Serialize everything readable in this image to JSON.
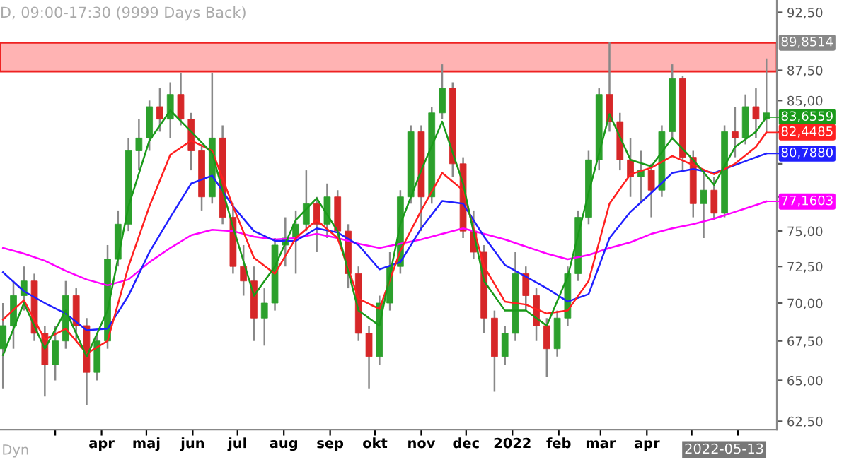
{
  "chart_data": {
    "type": "candlestick",
    "title": "D, 09:00-17:30 (9999 Days Back)",
    "x": [
      "2021-01-25",
      "2021-02-01",
      "2021-02-08",
      "2021-02-15",
      "2021-02-22",
      "2021-03-01",
      "2021-03-08",
      "2021-03-15",
      "2021-03-22",
      "2021-03-29",
      "2021-04-05",
      "2021-04-12",
      "2021-04-19",
      "2021-04-26",
      "2021-05-03",
      "2021-05-10",
      "2021-05-17",
      "2021-05-24",
      "2021-05-31",
      "2021-06-07",
      "2021-06-14",
      "2021-06-21",
      "2021-06-28",
      "2021-07-05",
      "2021-07-12",
      "2021-07-19",
      "2021-07-26",
      "2021-08-02",
      "2021-08-09",
      "2021-08-16",
      "2021-08-23",
      "2021-08-30",
      "2021-09-06",
      "2021-09-13",
      "2021-09-20",
      "2021-09-27",
      "2021-10-04",
      "2021-10-11",
      "2021-10-18",
      "2021-10-25",
      "2021-11-01",
      "2021-11-08",
      "2021-11-15",
      "2021-11-22",
      "2021-11-29",
      "2021-12-06",
      "2021-12-13",
      "2021-12-20",
      "2021-12-27",
      "2022-01-03",
      "2022-01-10",
      "2022-01-17",
      "2022-01-24",
      "2022-01-31",
      "2022-02-07",
      "2022-02-14",
      "2022-02-21",
      "2022-02-28",
      "2022-03-07",
      "2022-03-14",
      "2022-03-21",
      "2022-03-28",
      "2022-04-04",
      "2022-04-11",
      "2022-04-18",
      "2022-04-25",
      "2022-05-02",
      "2022-05-09",
      "2022-05-16",
      "2022-05-23",
      "2022-05-30",
      "2022-06-06",
      "2022-06-13",
      "2022-06-20"
    ],
    "ohlc": [
      [
        67,
        70,
        64.5,
        68.5
      ],
      [
        68.5,
        71.5,
        67,
        70.5
      ],
      [
        70.5,
        72.5,
        69.5,
        71.5
      ],
      [
        71.5,
        72,
        67.5,
        68
      ],
      [
        68,
        68.5,
        64,
        66
      ],
      [
        66,
        68.5,
        65,
        67.5
      ],
      [
        67.5,
        71.5,
        67,
        70.5
      ],
      [
        70.5,
        71,
        67.5,
        68.5
      ],
      [
        68.5,
        69,
        63.5,
        65.5
      ],
      [
        65.5,
        68,
        65,
        67.5
      ],
      [
        67.5,
        74,
        67,
        73
      ],
      [
        73,
        76.5,
        72.5,
        75.5
      ],
      [
        75.5,
        82,
        75,
        81
      ],
      [
        81,
        83.5,
        79.5,
        82
      ],
      [
        82,
        85,
        81,
        84.5
      ],
      [
        84.5,
        86,
        82.5,
        83.5
      ],
      [
        83.5,
        86.5,
        82,
        85.5
      ],
      [
        85.5,
        87.3,
        83,
        83.5
      ],
      [
        83.5,
        84,
        79.5,
        81
      ],
      [
        81,
        81.5,
        76.5,
        77.5
      ],
      [
        77.5,
        87.3,
        77,
        82
      ],
      [
        82,
        83,
        75.5,
        76
      ],
      [
        76,
        77,
        72,
        72.5
      ],
      [
        72.5,
        74,
        70.5,
        71.5
      ],
      [
        71.5,
        72.5,
        67.5,
        69
      ],
      [
        69,
        71,
        67.2,
        70
      ],
      [
        70,
        74.5,
        69.5,
        74
      ],
      [
        74,
        76,
        72.5,
        74.5
      ],
      [
        74.5,
        76.5,
        72,
        75.5
      ],
      [
        75.5,
        79.5,
        75,
        77
      ],
      [
        77,
        77.5,
        73.5,
        75.5
      ],
      [
        75.5,
        78.5,
        74.5,
        77.5
      ],
      [
        77.5,
        78,
        74.5,
        75
      ],
      [
        75,
        75.5,
        71,
        72
      ],
      [
        72,
        72.5,
        67.5,
        68
      ],
      [
        68,
        68.5,
        64.5,
        66.5
      ],
      [
        66.5,
        70.5,
        66,
        70
      ],
      [
        70,
        73.5,
        69.5,
        72.5
      ],
      [
        72.5,
        78,
        72,
        77.5
      ],
      [
        77.5,
        83,
        77,
        82.5
      ],
      [
        82.5,
        83,
        75,
        77.5
      ],
      [
        77.5,
        84.5,
        77,
        84
      ],
      [
        84,
        88,
        83.5,
        86
      ],
      [
        86,
        86.5,
        79,
        80
      ],
      [
        80,
        80.5,
        74.5,
        75
      ],
      [
        75,
        76.5,
        73,
        73.5
      ],
      [
        73.5,
        74,
        68,
        69
      ],
      [
        69,
        69.5,
        64.3,
        66.5
      ],
      [
        66.5,
        68.5,
        66,
        68
      ],
      [
        68,
        73.5,
        67.5,
        72
      ],
      [
        72,
        72.5,
        69.5,
        70.5
      ],
      [
        70.5,
        71,
        67.5,
        68.5
      ],
      [
        68.5,
        69,
        65.2,
        67
      ],
      [
        67,
        69.5,
        66.5,
        69
      ],
      [
        69,
        72.5,
        68.5,
        72
      ],
      [
        72,
        76.5,
        71.5,
        76
      ],
      [
        76,
        81,
        75.5,
        80.3
      ],
      [
        80.3,
        86,
        79.5,
        85.5
      ],
      [
        85.5,
        89.9,
        82.5,
        83.3
      ],
      [
        83.3,
        84,
        79.5,
        80.3
      ],
      [
        80.3,
        82,
        77.5,
        79
      ],
      [
        79,
        81,
        77,
        79.5
      ],
      [
        79.5,
        80,
        76,
        78
      ],
      [
        78,
        83,
        77.5,
        82.5
      ],
      [
        82.5,
        88,
        82,
        86.8
      ],
      [
        86.8,
        87,
        79.5,
        80.5
      ],
      [
        80.5,
        81,
        76,
        77
      ],
      [
        77,
        79.5,
        74.5,
        78
      ],
      [
        78,
        79,
        75.8,
        76.3
      ],
      [
        76.3,
        83,
        76,
        82.5
      ],
      [
        82.5,
        84.5,
        80.5,
        82
      ],
      [
        82,
        85.5,
        81.5,
        84.5
      ],
      [
        84.5,
        86,
        82,
        83.5
      ],
      [
        83.5,
        88.5,
        82.5,
        84
      ]
    ],
    "colors": [
      "#2ca02c",
      "#2ca02c",
      "#2ca02c",
      "#d62728",
      "#d62728",
      "#2ca02c",
      "#2ca02c",
      "#d62728",
      "#d62728",
      "#2ca02c",
      "#2ca02c",
      "#2ca02c",
      "#2ca02c",
      "#2ca02c",
      "#2ca02c",
      "#d62728",
      "#2ca02c",
      "#d62728",
      "#d62728",
      "#d62728",
      "#2ca02c",
      "#d62728",
      "#d62728",
      "#d62728",
      "#d62728",
      "#2ca02c",
      "#2ca02c",
      "#2ca02c",
      "#2ca02c",
      "#2ca02c",
      "#d62728",
      "#2ca02c",
      "#d62728",
      "#d62728",
      "#d62728",
      "#d62728",
      "#2ca02c",
      "#2ca02c",
      "#2ca02c",
      "#2ca02c",
      "#d62728",
      "#2ca02c",
      "#2ca02c",
      "#d62728",
      "#d62728",
      "#d62728",
      "#d62728",
      "#d62728",
      "#2ca02c",
      "#2ca02c",
      "#d62728",
      "#d62728",
      "#d62728",
      "#2ca02c",
      "#2ca02c",
      "#2ca02c",
      "#2ca02c",
      "#2ca02c",
      "#d62728",
      "#d62728",
      "#d62728",
      "#2ca02c",
      "#d62728",
      "#2ca02c",
      "#2ca02c",
      "#d62728",
      "#d62728",
      "#2ca02c",
      "#d62728",
      "#2ca02c",
      "#d62728",
      "#2ca02c",
      "#d62728",
      "#2ca02c"
    ],
    "series": [
      {
        "type": "line",
        "color": "#ff00ff",
        "x": [
          "2021-01-25",
          "2021-02-08",
          "2021-02-22",
          "2021-03-08",
          "2021-03-22",
          "2021-04-05",
          "2021-04-19",
          "2021-05-03",
          "2021-05-17",
          "2021-05-31",
          "2021-06-14",
          "2021-06-28",
          "2021-07-12",
          "2021-07-26",
          "2021-08-09",
          "2021-08-23",
          "2021-09-06",
          "2021-09-20",
          "2021-10-04",
          "2021-10-18",
          "2021-11-01",
          "2021-11-15",
          "2021-11-29",
          "2021-12-13",
          "2021-12-27",
          "2022-01-10",
          "2022-01-24",
          "2022-02-07",
          "2022-02-21",
          "2022-03-07",
          "2022-03-21",
          "2022-04-04",
          "2022-04-18",
          "2022-05-02",
          "2022-05-16",
          "2022-05-30",
          "2022-06-13",
          "2022-06-20"
        ],
        "values": [
          73.8,
          73.4,
          72.9,
          72.2,
          71.6,
          71.2,
          71.6,
          72.8,
          73.8,
          74.7,
          75.1,
          75,
          74.6,
          74.4,
          74.5,
          74.8,
          74.5,
          74.1,
          73.8,
          74.1,
          74.4,
          74.8,
          75.2,
          74.8,
          74.4,
          73.9,
          73.4,
          73,
          73.3,
          73.8,
          74.2,
          74.8,
          75.2,
          75.5,
          75.9,
          76.4,
          76.9,
          77.1603
        ]
      },
      {
        "type": "line",
        "color": "#2020ff",
        "x": [
          "2021-01-25",
          "2021-02-08",
          "2021-02-22",
          "2021-03-08",
          "2021-03-22",
          "2021-04-05",
          "2021-04-19",
          "2021-05-03",
          "2021-05-17",
          "2021-05-31",
          "2021-06-14",
          "2021-06-28",
          "2021-07-12",
          "2021-07-26",
          "2021-08-09",
          "2021-08-23",
          "2021-09-06",
          "2021-09-20",
          "2021-10-04",
          "2021-10-18",
          "2021-11-01",
          "2021-11-15",
          "2021-11-29",
          "2021-12-13",
          "2021-12-27",
          "2022-01-10",
          "2022-01-24",
          "2022-02-07",
          "2022-02-21",
          "2022-03-07",
          "2022-03-21",
          "2022-04-04",
          "2022-04-18",
          "2022-05-02",
          "2022-05-16",
          "2022-05-30",
          "2022-06-13",
          "2022-06-20"
        ],
        "values": [
          72.1,
          70.8,
          70,
          69.3,
          68.2,
          68.3,
          70.5,
          73.5,
          76,
          78.5,
          79.1,
          76.8,
          75,
          74.3,
          74.3,
          75.2,
          74.9,
          74,
          72.3,
          72.8,
          75.2,
          77.2,
          77,
          74.6,
          72.6,
          71.8,
          71,
          70.1,
          70.6,
          74.5,
          76.4,
          77.8,
          79.3,
          79.6,
          79.3,
          79.9,
          80.5,
          80.788
        ]
      },
      {
        "type": "line",
        "color": "#ff2020",
        "x": [
          "2021-01-25",
          "2021-02-08",
          "2021-02-22",
          "2021-03-08",
          "2021-03-22",
          "2021-04-05",
          "2021-04-19",
          "2021-05-03",
          "2021-05-17",
          "2021-05-31",
          "2021-06-14",
          "2021-06-28",
          "2021-07-12",
          "2021-07-26",
          "2021-08-09",
          "2021-08-23",
          "2021-09-06",
          "2021-09-20",
          "2021-10-04",
          "2021-10-18",
          "2021-11-01",
          "2021-11-15",
          "2021-11-29",
          "2021-12-13",
          "2021-12-27",
          "2022-01-10",
          "2022-01-24",
          "2022-02-07",
          "2022-02-21",
          "2022-03-07",
          "2022-03-21",
          "2022-04-04",
          "2022-04-18",
          "2022-05-02",
          "2022-05-16",
          "2022-05-30",
          "2022-06-13",
          "2022-06-20"
        ],
        "values": [
          68.9,
          70.2,
          67.6,
          68.3,
          66.7,
          67.5,
          72.5,
          76.8,
          80.7,
          81.8,
          81,
          76.8,
          73.1,
          72,
          74.5,
          75.8,
          74.5,
          70.3,
          69.6,
          73.6,
          76.5,
          79.3,
          78,
          72.5,
          70.1,
          69.9,
          69.3,
          69.5,
          71.5,
          77,
          79.2,
          79.7,
          80.6,
          79.9,
          79.2,
          80,
          81.3,
          82.4485
        ]
      },
      {
        "type": "line",
        "color": "#1a9a1a",
        "x": [
          "2021-01-25",
          "2021-02-08",
          "2021-02-22",
          "2021-03-08",
          "2021-03-22",
          "2021-04-05",
          "2021-04-19",
          "2021-05-03",
          "2021-05-17",
          "2021-05-31",
          "2021-06-14",
          "2021-06-28",
          "2021-07-12",
          "2021-07-26",
          "2021-08-09",
          "2021-08-23",
          "2021-09-06",
          "2021-09-20",
          "2021-10-04",
          "2021-10-18",
          "2021-11-01",
          "2021-11-15",
          "2021-11-29",
          "2021-12-13",
          "2021-12-27",
          "2022-01-10",
          "2022-01-24",
          "2022-02-07",
          "2022-02-21",
          "2022-03-07",
          "2022-03-21",
          "2022-04-04",
          "2022-04-18",
          "2022-05-02",
          "2022-05-16",
          "2022-05-30",
          "2022-06-13",
          "2022-06-20"
        ],
        "values": [
          66.6,
          70,
          67,
          69.5,
          66.5,
          69.5,
          76.8,
          81.8,
          84.2,
          82.5,
          80.8,
          75.3,
          70.5,
          72.5,
          75.8,
          77.4,
          75,
          69.5,
          68.5,
          75.5,
          79.5,
          83.3,
          78.5,
          71.5,
          69.5,
          69.5,
          68.5,
          71.8,
          77.8,
          83.9,
          80.3,
          79.8,
          82,
          80.3,
          78.4,
          81.3,
          82.5,
          83.6559
        ]
      }
    ],
    "bands": [
      {
        "axis": "y",
        "from": 87.4,
        "to": 89.8514,
        "label": "89,8514",
        "color": "#ffb3b3"
      }
    ],
    "annotations": [
      {
        "text": "83,6559",
        "x": "2022-06-20",
        "y": 83.6559
      },
      {
        "text": "82,4485",
        "x": "2022-06-20",
        "y": 82.4485
      },
      {
        "text": "80,7880",
        "x": "2022-06-20",
        "y": 80.788
      },
      {
        "text": "77,1603",
        "x": "2022-06-20",
        "y": 77.1603
      },
      "2022-05-13",
      "Dyn"
    ],
    "log": "y",
    "ylim": [
      62.0,
      93.6
    ],
    "yticks": [
      {
        "value": 92.5,
        "label": "92,50"
      },
      {
        "value": 87.5,
        "label": "87,50"
      },
      {
        "value": 85,
        "label": "85,00"
      },
      {
        "value": 82.5,
        "label": null
      },
      {
        "value": 80,
        "label": null
      },
      {
        "value": 77.5,
        "label": null
      },
      {
        "value": 75,
        "label": "75,00"
      },
      {
        "value": 72.5,
        "label": "72,50"
      },
      {
        "value": 70,
        "label": "70,00"
      },
      {
        "value": 67.5,
        "label": "67,50"
      },
      {
        "value": 65,
        "label": "65,00"
      },
      {
        "value": 62.5,
        "label": "62,50"
      }
    ],
    "xlim": [
      "2021-01-23",
      "2022-06-27"
    ],
    "xticks": [
      {
        "value": "2021-03-01",
        "label": null
      },
      {
        "value": "2021-04-01",
        "label": "apr"
      },
      {
        "value": "2021-05-01",
        "label": "maj"
      },
      {
        "value": "2021-06-01",
        "label": "jun"
      },
      {
        "value": "2021-07-01",
        "label": "jul"
      },
      {
        "value": "2021-08-01",
        "label": "aug"
      },
      {
        "value": "2021-09-01",
        "label": "sep"
      },
      {
        "value": "2021-10-01",
        "label": "okt"
      },
      {
        "value": "2021-11-01",
        "label": "nov"
      },
      {
        "value": "2021-12-01",
        "label": "dec"
      },
      {
        "value": "2022-01-01",
        "label": "2022"
      },
      {
        "value": "2022-02-01",
        "label": "feb"
      },
      {
        "value": "2022-03-01",
        "label": "mar"
      },
      {
        "value": "2022-04-01",
        "label": "apr"
      },
      {
        "value": "2022-05-01",
        "label": null
      },
      {
        "value": "2022-06-01",
        "label": null
      }
    ],
    "grid": false,
    "legend": false
  }
}
